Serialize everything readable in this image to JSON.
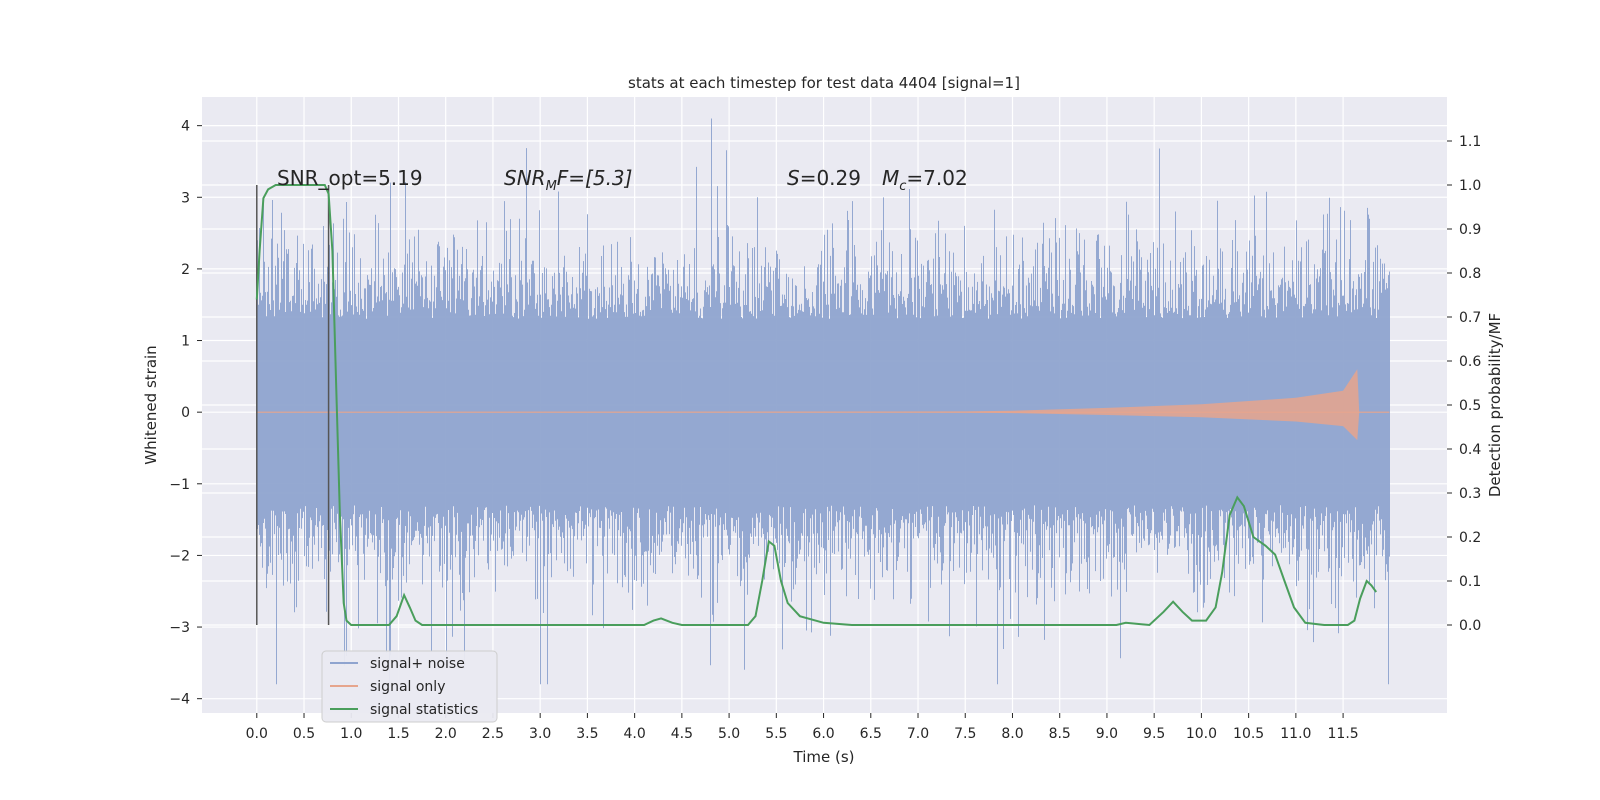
{
  "chart_data": {
    "type": "line",
    "title": "stats at each timestep for test data 4404 [signal=1]",
    "xlabel": "Time (s)",
    "ylabel": "Whitened strain",
    "ylabel_right": "Detection probability/MF",
    "xlim": [
      -0.58,
      12.6
    ],
    "ylim": [
      -4.2,
      4.4
    ],
    "ylim_right": [
      -0.2,
      1.2
    ],
    "x_ticks": [
      "0.0",
      "0.5",
      "1.0",
      "1.5",
      "2.0",
      "2.5",
      "3.0",
      "3.5",
      "4.0",
      "4.5",
      "5.0",
      "5.5",
      "6.0",
      "6.5",
      "7.0",
      "7.5",
      "8.0",
      "8.5",
      "9.0",
      "9.5",
      "10.0",
      "10.5",
      "11.0",
      "11.5"
    ],
    "y_ticks": [
      "4",
      "3",
      "2",
      "1",
      "0",
      "−1",
      "−2",
      "−3",
      "−4"
    ],
    "y_ticks_right": [
      "1.1",
      "1.0",
      "0.9",
      "0.8",
      "0.7",
      "0.6",
      "0.5",
      "0.4",
      "0.3",
      "0.2",
      "0.1",
      "0.0"
    ],
    "grid": true,
    "legend_position": "bottom-left",
    "annotations": {
      "snr_opt": "SNR_opt=5.19",
      "snr_mf_symbol": "SNR",
      "snr_mf_sub": "M",
      "snr_mf_value": "F=[5.3]",
      "s_symbol": "S",
      "s_value": "=0.29",
      "mc_symbol": "M",
      "mc_sub": "c",
      "mc_value": "=7.02"
    },
    "markers": [
      0.0,
      0.76
    ],
    "series": [
      {
        "name": "signal+ noise",
        "color": "#8fa4cf",
        "kind": "noise",
        "x_range": [
          0.0,
          11.99
        ],
        "typical_amplitude": 1.3,
        "spike_max": 4.1,
        "spike_min": -3.8
      },
      {
        "name": "signal only",
        "color": "#e6a58d",
        "kind": "chirp",
        "envelope": [
          [
            0.0,
            0.0
          ],
          [
            7.5,
            0.01
          ],
          [
            8.0,
            0.02
          ],
          [
            9.0,
            0.06
          ],
          [
            10.0,
            0.11
          ],
          [
            11.0,
            0.2
          ],
          [
            11.5,
            0.3
          ],
          [
            11.65,
            0.6
          ],
          [
            11.67,
            0.0
          ]
        ]
      },
      {
        "name": "signal statistics",
        "color": "#4a9e5c",
        "kind": "line",
        "axis": "right",
        "points": [
          [
            0.0,
            0.74
          ],
          [
            0.03,
            0.85
          ],
          [
            0.07,
            0.97
          ],
          [
            0.12,
            0.99
          ],
          [
            0.2,
            1.0
          ],
          [
            0.4,
            1.0
          ],
          [
            0.6,
            1.0
          ],
          [
            0.72,
            1.0
          ],
          [
            0.76,
            0.98
          ],
          [
            0.8,
            0.85
          ],
          [
            0.84,
            0.55
          ],
          [
            0.88,
            0.25
          ],
          [
            0.92,
            0.05
          ],
          [
            0.95,
            0.01
          ],
          [
            1.0,
            0.0
          ],
          [
            1.4,
            0.0
          ],
          [
            1.48,
            0.02
          ],
          [
            1.56,
            0.068
          ],
          [
            1.62,
            0.04
          ],
          [
            1.68,
            0.01
          ],
          [
            1.75,
            0.0
          ],
          [
            4.1,
            0.0
          ],
          [
            4.2,
            0.01
          ],
          [
            4.28,
            0.015
          ],
          [
            4.4,
            0.005
          ],
          [
            4.5,
            0.0
          ],
          [
            5.2,
            0.0
          ],
          [
            5.28,
            0.02
          ],
          [
            5.35,
            0.1
          ],
          [
            5.42,
            0.19
          ],
          [
            5.48,
            0.18
          ],
          [
            5.55,
            0.1
          ],
          [
            5.62,
            0.05
          ],
          [
            5.75,
            0.02
          ],
          [
            6.0,
            0.005
          ],
          [
            6.3,
            0.0
          ],
          [
            9.1,
            0.0
          ],
          [
            9.2,
            0.005
          ],
          [
            9.45,
            0.0
          ],
          [
            9.6,
            0.03
          ],
          [
            9.7,
            0.053
          ],
          [
            9.8,
            0.03
          ],
          [
            9.9,
            0.01
          ],
          [
            10.05,
            0.01
          ],
          [
            10.15,
            0.04
          ],
          [
            10.22,
            0.12
          ],
          [
            10.3,
            0.25
          ],
          [
            10.38,
            0.29
          ],
          [
            10.45,
            0.27
          ],
          [
            10.55,
            0.2
          ],
          [
            10.68,
            0.18
          ],
          [
            10.78,
            0.16
          ],
          [
            10.88,
            0.1
          ],
          [
            10.98,
            0.04
          ],
          [
            11.1,
            0.005
          ],
          [
            11.3,
            0.0
          ],
          [
            11.55,
            0.0
          ],
          [
            11.62,
            0.01
          ],
          [
            11.68,
            0.06
          ],
          [
            11.75,
            0.1
          ],
          [
            11.8,
            0.09
          ],
          [
            11.85,
            0.075
          ]
        ]
      }
    ]
  }
}
